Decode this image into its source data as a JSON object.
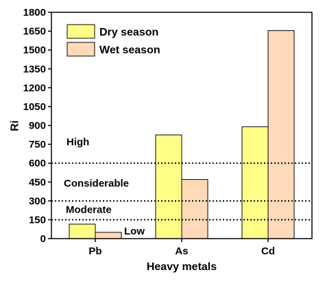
{
  "chart_data": {
    "type": "bar",
    "title": "",
    "xlabel": "Heavy metals",
    "ylabel": "Ri",
    "categories": [
      "Pb",
      "As",
      "Cd"
    ],
    "series": [
      {
        "name": "Dry season",
        "values": [
          115,
          825,
          890
        ],
        "color": "#ffff88"
      },
      {
        "name": "Wet season",
        "values": [
          50,
          470,
          1655
        ],
        "color": "#ffd9b8"
      }
    ],
    "ylim": [
      0,
      1800
    ],
    "yticks": [
      "0",
      "150",
      "300",
      "450",
      "600",
      "750",
      "900",
      "1050",
      "1200",
      "1350",
      "1500",
      "1650",
      "1800"
    ],
    "grid": false,
    "legend_position": "top-left",
    "thresholds": [
      {
        "value": 150
      },
      {
        "value": 300
      },
      {
        "value": 600
      }
    ],
    "annotations": [
      {
        "text": "Low",
        "x_category": "Pb",
        "y": 60
      },
      {
        "text": "Moderate",
        "x_category": "Pb",
        "y": 230
      },
      {
        "text": "Considerable",
        "x_category": "Pb",
        "y": 440
      },
      {
        "text": "High",
        "x_category": "Pb",
        "y": 770
      }
    ]
  }
}
